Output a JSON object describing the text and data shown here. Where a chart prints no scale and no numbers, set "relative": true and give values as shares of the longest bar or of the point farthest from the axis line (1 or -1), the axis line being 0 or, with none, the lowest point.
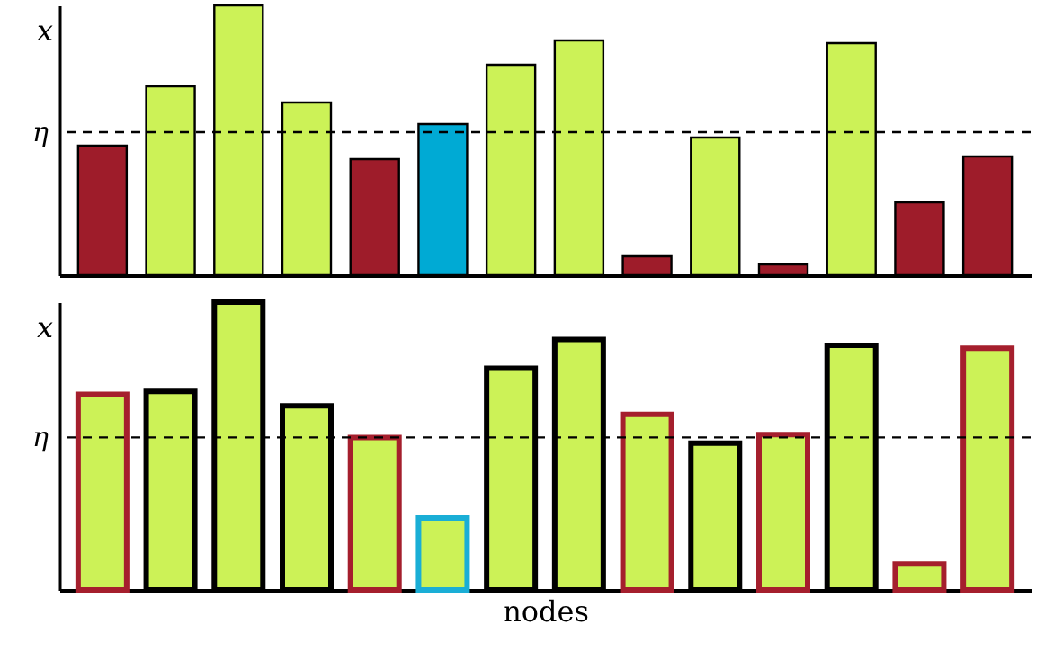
{
  "chart_data": [
    {
      "type": "bar",
      "relative": true,
      "ylabel": "x",
      "categories": [
        null,
        null,
        null,
        null,
        null,
        null,
        null,
        null,
        null,
        null,
        null,
        null,
        null,
        null
      ],
      "series": [
        {
          "colors": [
            "#9e1c2a",
            "#ccf257",
            "#ccf257",
            "#ccf257",
            "#9e1c2a",
            "#00aad4",
            "#ccf257",
            "#ccf257",
            "#9e1c2a",
            "#ccf257",
            "#9e1c2a",
            "#ccf257",
            "#9e1c2a",
            "#9e1c2a"
          ],
          "values": [
            0.48,
            0.7,
            1,
            0.64,
            0.43,
            0.56,
            0.78,
            0.87,
            0.07,
            0.51,
            0.04,
            0.86,
            0.27,
            0.44
          ]
        }
      ],
      "ref_lines": [
        {
          "axis": "y",
          "value": 0.53,
          "label": "η",
          "line_style": "dashed"
        }
      ],
      "grid": false
    },
    {
      "type": "bar",
      "relative": true,
      "ylabel": "x",
      "xlabel": "nodes",
      "categories": [
        null,
        null,
        null,
        null,
        null,
        null,
        null,
        null,
        null,
        null,
        null,
        null,
        null,
        null
      ],
      "series": [
        {
          "color": "#ccf257",
          "colors": [
            "#a51f2d",
            "#000000",
            "#000000",
            "#000000",
            "#a51f2d",
            "#1aaed6",
            "#000000",
            "#000000",
            "#a51f2d",
            "#000000",
            "#a51f2d",
            "#000000",
            "#a51f2d",
            "#a51f2d"
          ],
          "values": [
            0.68,
            0.69,
            1,
            0.64,
            0.53,
            0.25,
            0.77,
            0.87,
            0.61,
            0.51,
            0.54,
            0.85,
            0.09,
            0.84
          ]
        }
      ],
      "ref_lines": [
        {
          "axis": "y",
          "value": 0.53,
          "label": "η",
          "line_style": "dashed"
        }
      ],
      "grid": false
    }
  ]
}
